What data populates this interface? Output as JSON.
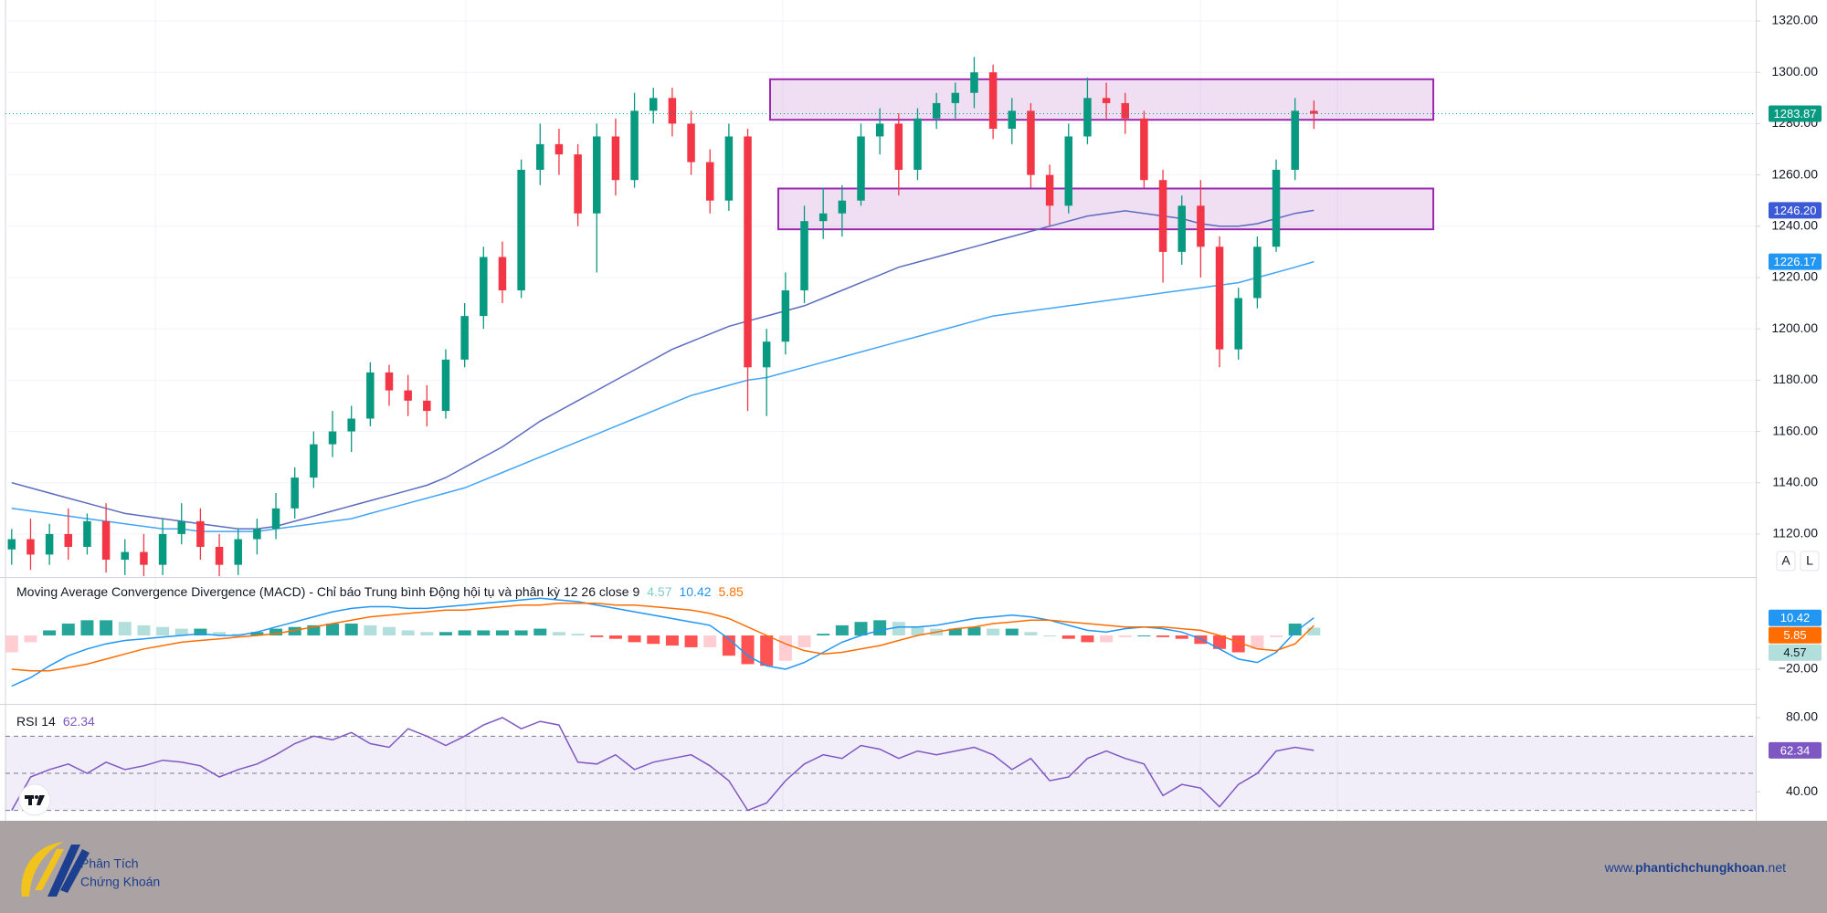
{
  "chart_data": [
    {
      "type": "candlestick",
      "open": [
        1114,
        1118,
        1112,
        1120,
        1115,
        1125,
        1110,
        1113,
        1108,
        1120,
        1125,
        1115,
        1108,
        1118,
        1122,
        1130,
        1142,
        1155,
        1160,
        1165,
        1183,
        1176,
        1172,
        1168,
        1188,
        1205,
        1228,
        1215,
        1262,
        1272,
        1268,
        1245,
        1275,
        1258,
        1285,
        1290,
        1280,
        1265,
        1250,
        1275,
        1185,
        1195,
        1215,
        1242,
        1245,
        1250,
        1275,
        1280,
        1262,
        1282,
        1288,
        1292,
        1300,
        1278,
        1285,
        1260,
        1248,
        1275,
        1290,
        1288,
        1282,
        1258,
        1230,
        1248,
        1232,
        1192,
        1212,
        1232,
        1262,
        1285
      ],
      "high": [
        1122,
        1126,
        1124,
        1130,
        1128,
        1132,
        1118,
        1120,
        1126,
        1132,
        1130,
        1120,
        1122,
        1126,
        1136,
        1146,
        1160,
        1168,
        1170,
        1187,
        1186,
        1182,
        1178,
        1192,
        1210,
        1232,
        1234,
        1266,
        1280,
        1278,
        1272,
        1280,
        1282,
        1292,
        1294,
        1294,
        1285,
        1270,
        1280,
        1278,
        1200,
        1222,
        1248,
        1255,
        1256,
        1280,
        1286,
        1284,
        1286,
        1292,
        1296,
        1306,
        1303,
        1290,
        1288,
        1264,
        1280,
        1298,
        1296,
        1292,
        1285,
        1262,
        1252,
        1258,
        1236,
        1216,
        1236,
        1266,
        1290,
        1289
      ],
      "low": [
        1108,
        1106,
        1108,
        1110,
        1112,
        1105,
        1104,
        1102,
        1104,
        1116,
        1110,
        1102,
        1104,
        1112,
        1118,
        1126,
        1138,
        1150,
        1152,
        1162,
        1170,
        1166,
        1162,
        1165,
        1185,
        1200,
        1210,
        1212,
        1256,
        1260,
        1240,
        1222,
        1252,
        1255,
        1280,
        1275,
        1260,
        1245,
        1246,
        1168,
        1166,
        1190,
        1210,
        1235,
        1236,
        1248,
        1268,
        1252,
        1258,
        1278,
        1282,
        1286,
        1274,
        1272,
        1255,
        1240,
        1245,
        1272,
        1282,
        1276,
        1255,
        1218,
        1225,
        1220,
        1185,
        1188,
        1208,
        1230,
        1258,
        1278
      ],
      "close": [
        1118,
        1112,
        1120,
        1115,
        1125,
        1110,
        1113,
        1108,
        1120,
        1125,
        1115,
        1108,
        1118,
        1122,
        1130,
        1142,
        1155,
        1160,
        1165,
        1183,
        1176,
        1172,
        1168,
        1188,
        1205,
        1228,
        1215,
        1262,
        1272,
        1268,
        1245,
        1275,
        1258,
        1285,
        1290,
        1280,
        1265,
        1250,
        1275,
        1185,
        1195,
        1215,
        1242,
        1245,
        1250,
        1275,
        1280,
        1262,
        1282,
        1288,
        1292,
        1300,
        1278,
        1285,
        1260,
        1248,
        1275,
        1290,
        1288,
        1282,
        1258,
        1230,
        1248,
        1232,
        1192,
        1212,
        1232,
        1262,
        1285,
        1283.87
      ],
      "up_color": "#089981",
      "down_color": "#f23645",
      "lines": [
        {
          "color": "#5c6bc0",
          "values": [
            1140,
            1138,
            1136,
            1134,
            1132,
            1130,
            1128,
            1127,
            1126,
            1125,
            1124,
            1123,
            1122,
            1122,
            1123,
            1125,
            1127,
            1129,
            1131,
            1133,
            1135,
            1137,
            1139,
            1142,
            1146,
            1150,
            1154,
            1159,
            1164,
            1168,
            1172,
            1176,
            1180,
            1184,
            1188,
            1192,
            1195,
            1198,
            1201,
            1203,
            1205,
            1207,
            1209,
            1212,
            1215,
            1218,
            1221,
            1224,
            1226,
            1228,
            1230,
            1232,
            1234,
            1236,
            1238,
            1240,
            1242,
            1244,
            1245,
            1246,
            1245,
            1244,
            1243,
            1241,
            1240,
            1240,
            1241,
            1243,
            1245,
            1246.2
          ]
        },
        {
          "color": "#42a5f5",
          "values": [
            1130,
            1129,
            1128,
            1127,
            1126,
            1125,
            1124,
            1123,
            1122,
            1122,
            1121,
            1121,
            1121,
            1121,
            1122,
            1123,
            1124,
            1125,
            1126,
            1128,
            1130,
            1132,
            1134,
            1136,
            1138,
            1141,
            1144,
            1147,
            1150,
            1153,
            1156,
            1159,
            1162,
            1165,
            1168,
            1171,
            1174,
            1176,
            1178,
            1180,
            1181,
            1183,
            1185,
            1187,
            1189,
            1191,
            1193,
            1195,
            1197,
            1199,
            1201,
            1203,
            1205,
            1206,
            1207,
            1208,
            1209,
            1210,
            1211,
            1212,
            1213,
            1214,
            1215,
            1216,
            1217,
            1218,
            1220,
            1222,
            1224,
            1226.17
          ]
        }
      ],
      "zones": [
        {
          "from": 1281.5,
          "to": 1297.3
        },
        {
          "from": 1238.8,
          "to": 1254.7
        }
      ],
      "zone_color": "#9c27b0",
      "ylim": [
        1103.6,
        1328.2
      ],
      "yticks": [
        {
          "value": 1120,
          "label": "1120.00"
        },
        {
          "value": 1140,
          "label": "1140.00"
        },
        {
          "value": 1160,
          "label": "1160.00"
        },
        {
          "value": 1180,
          "label": "1180.00"
        },
        {
          "value": 1200,
          "label": "1200.00"
        },
        {
          "value": 1220,
          "label": "1220.00"
        },
        {
          "value": 1240,
          "label": "1240.00"
        },
        {
          "value": 1260,
          "label": "1260.00"
        },
        {
          "value": 1280,
          "label": "1280.00"
        },
        {
          "value": 1300,
          "label": "1300.00"
        },
        {
          "value": 1320,
          "label": "1320.00"
        }
      ],
      "grid": true,
      "badges": [
        {
          "value": 1283.87,
          "label": "1283.87",
          "color": "#089981"
        },
        {
          "value": 1246.2,
          "label": "1246.20",
          "color": "#3c5ad6"
        },
        {
          "value": 1226.17,
          "label": "1226.17",
          "color": "#2196f3"
        }
      ]
    },
    {
      "type": "macd",
      "title": "Moving Average Convergence Divergence (MACD) - Chỉ báo Trung bình Động hội tụ và phân kỳ 12 26 close 9",
      "lines": [
        {
          "color": "#2196f3",
          "values": [
            -30,
            -25,
            -18,
            -12,
            -8,
            -5,
            -3,
            -2,
            -1,
            0,
            1,
            0,
            0,
            2,
            5,
            8,
            11,
            14,
            16,
            17,
            17,
            16,
            16,
            17,
            18,
            19,
            20,
            21,
            22,
            21,
            20,
            18,
            16,
            14,
            12,
            10,
            8,
            6,
            -2,
            -12,
            -18,
            -20,
            -16,
            -10,
            -4,
            0,
            3,
            5,
            5,
            6,
            8,
            10,
            11,
            12,
            11,
            9,
            6,
            3,
            2,
            4,
            5,
            4,
            2,
            -2,
            -8,
            -14,
            -16,
            -10,
            2,
            10.42
          ]
        },
        {
          "color": "#ff6d00",
          "values": [
            -20,
            -21,
            -21,
            -19,
            -17,
            -14,
            -11,
            -8,
            -6,
            -4,
            -3,
            -2,
            -1,
            0,
            1,
            3,
            5,
            7,
            9,
            11,
            12,
            13,
            14,
            15,
            15,
            16,
            17,
            18,
            18,
            19,
            19,
            19,
            18,
            18,
            17,
            16,
            15,
            13,
            10,
            5,
            0,
            -5,
            -9,
            -11,
            -10,
            -8,
            -6,
            -3,
            0,
            2,
            4,
            5,
            7,
            8,
            9,
            9,
            8,
            7,
            6,
            5,
            5,
            5,
            4,
            3,
            0,
            -4,
            -8,
            -9,
            -5,
            5.85
          ]
        }
      ],
      "histogram": [
        -10,
        -4,
        3,
        7,
        9,
        9,
        8,
        6,
        5,
        4,
        4,
        2,
        1,
        2,
        4,
        5,
        6,
        7,
        7,
        6,
        5,
        3,
        2,
        2,
        3,
        3,
        3,
        3,
        4,
        2,
        1,
        -1,
        -2,
        -4,
        -5,
        -6,
        -7,
        -7,
        -12,
        -17,
        -18,
        -15,
        -7,
        1,
        6,
        8,
        9,
        8,
        5,
        4,
        4,
        5,
        4,
        4,
        2,
        0,
        -2,
        -4,
        -4,
        -1,
        0,
        -1,
        -2,
        -5,
        -8,
        -10,
        -8,
        -1,
        7,
        4.57
      ],
      "histogram_colors": [
        "#26a69a",
        "#b2dfdb",
        "#ff5252",
        "#ffcdd2"
      ],
      "ylim": [
        -40,
        33.5
      ],
      "yticks": [
        {
          "value": -20,
          "label": "−20.00"
        }
      ],
      "grid": true,
      "badges": [
        {
          "value": 4.57,
          "label": "4.57",
          "color": "#b2dfdb",
          "text_color": "#131722"
        },
        {
          "value": 10.42,
          "label": "10.42",
          "color": "#2196f3"
        },
        {
          "value": 5.85,
          "label": "5.85",
          "color": "#ff6d00"
        }
      ]
    },
    {
      "type": "rsi",
      "title": "RSI 14",
      "values": [
        30,
        48,
        52,
        55,
        50,
        56,
        52,
        54,
        57,
        56,
        54,
        48,
        52,
        55,
        60,
        66,
        70,
        68,
        72,
        66,
        64,
        74,
        70,
        65,
        70,
        76,
        80,
        74,
        78,
        76,
        56,
        55,
        60,
        52,
        56,
        58,
        60,
        54,
        46,
        30,
        34,
        46,
        55,
        60,
        58,
        65,
        63,
        58,
        62,
        60,
        62,
        64,
        60,
        52,
        58,
        46,
        48,
        58,
        62,
        58,
        55,
        38,
        44,
        42,
        32,
        44,
        50,
        62,
        64,
        62.34
      ],
      "color": "#7e57c2",
      "levels": [
        70,
        50,
        30
      ],
      "ylim": [
        24.4,
        86.4
      ],
      "yticks": [
        {
          "value": 80,
          "label": "80.00"
        },
        {
          "value": 40,
          "label": "40.00"
        }
      ],
      "grid": false,
      "badges": [
        {
          "value": 62.34,
          "label": "62.34",
          "color": "#7e57c2"
        }
      ]
    }
  ],
  "buttons": [
    "A",
    "L"
  ],
  "footer": {
    "logo_line1": "Phân Tích",
    "logo_line2": "Chứng Khoán",
    "url_prefix": "www.",
    "url_domain": "phantichchungkhoan",
    "url_suffix": ".net"
  }
}
